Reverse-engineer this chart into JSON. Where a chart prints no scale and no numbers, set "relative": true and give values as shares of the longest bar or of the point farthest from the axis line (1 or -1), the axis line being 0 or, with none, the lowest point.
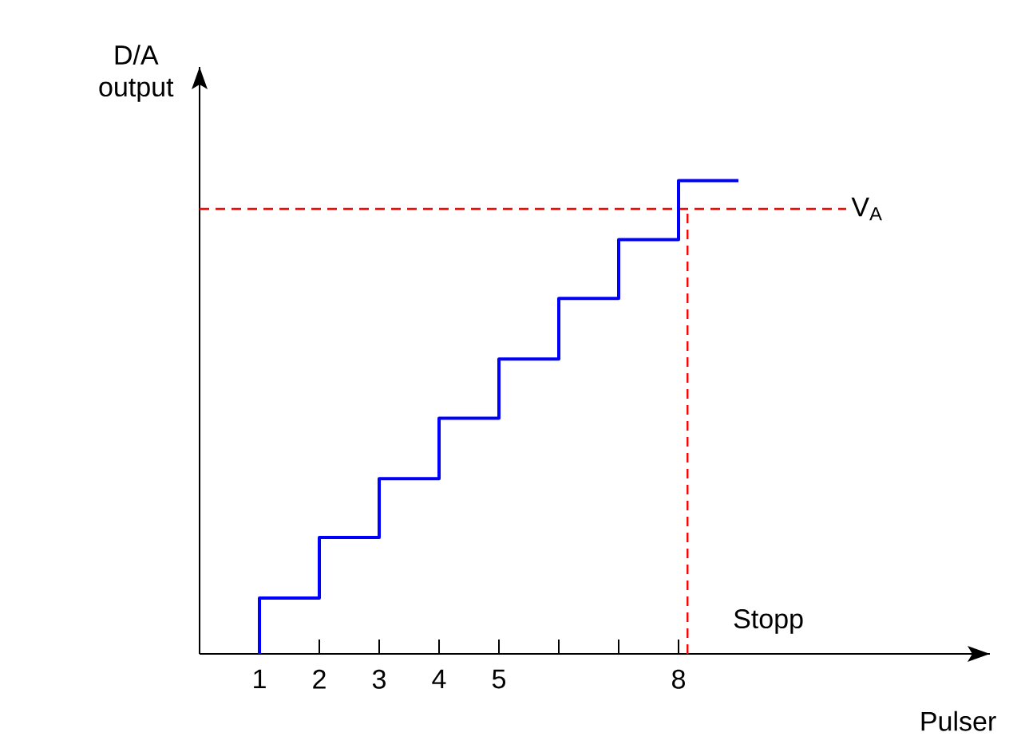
{
  "chart_data": {
    "type": "step",
    "relative": true,
    "xlabel": "Pulser",
    "ylabel": "D/A output",
    "x": [
      1,
      1,
      2,
      3,
      4,
      5,
      6,
      7,
      8,
      9
    ],
    "values": [
      0,
      0.118,
      0.246,
      0.37,
      0.498,
      0.623,
      0.751,
      0.875,
      1,
      1
    ],
    "color": "#0000ff",
    "xlim": [
      0,
      13.2
    ],
    "xticks": [
      1,
      2,
      3,
      4,
      5,
      {
        "value": 6,
        "label": null
      },
      {
        "value": 7,
        "label": null
      },
      8
    ],
    "ref_lines": [
      {
        "axis": "y",
        "value": 0.94,
        "label": "V$_{A}$",
        "color": "#ff0000",
        "line_style": "dashed"
      },
      {
        "axis": "x",
        "value": 8.15,
        "label": "Stopp",
        "color": "#ff0000",
        "line_style": "dashed"
      }
    ]
  }
}
